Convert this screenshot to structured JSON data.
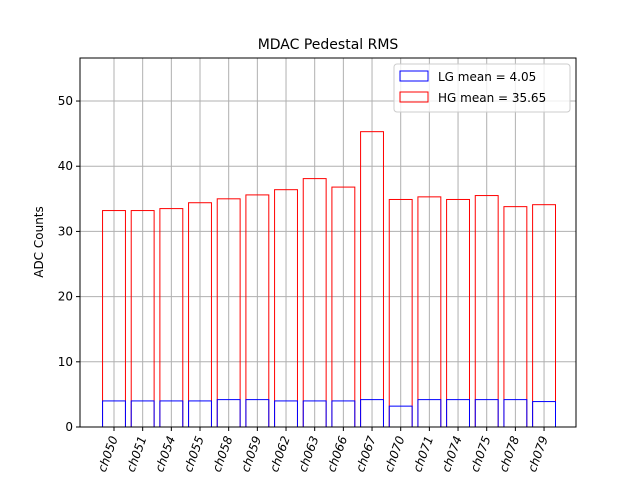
{
  "chart_data": {
    "type": "bar",
    "title": "MDAC Pedestal RMS",
    "xlabel": "",
    "ylabel": "ADC Counts",
    "categories": [
      "ch050",
      "ch051",
      "ch054",
      "ch055",
      "ch058",
      "ch059",
      "ch062",
      "ch063",
      "ch066",
      "ch067",
      "ch070",
      "ch071",
      "ch074",
      "ch075",
      "ch078",
      "ch079"
    ],
    "series": [
      {
        "name": "HG mean = 35.65",
        "color": "#ff0000",
        "values": [
          33.2,
          33.2,
          33.5,
          34.4,
          35.0,
          35.6,
          36.4,
          38.1,
          36.8,
          45.3,
          34.9,
          35.3,
          34.9,
          35.5,
          33.8,
          34.1
        ]
      },
      {
        "name": "LG mean = 4.05",
        "color": "#0000ff",
        "values": [
          4.0,
          4.0,
          4.0,
          4.0,
          4.2,
          4.2,
          4.0,
          4.0,
          4.0,
          4.2,
          3.2,
          4.2,
          4.2,
          4.2,
          4.2,
          3.9
        ]
      }
    ],
    "ylim": [
      0,
      56.6
    ],
    "yticks": [
      0,
      10,
      20,
      30,
      40,
      50
    ],
    "grid": true,
    "legend_position": "top-right",
    "legend_order": [
      "LG mean = 4.05",
      "HG mean = 35.65"
    ]
  }
}
